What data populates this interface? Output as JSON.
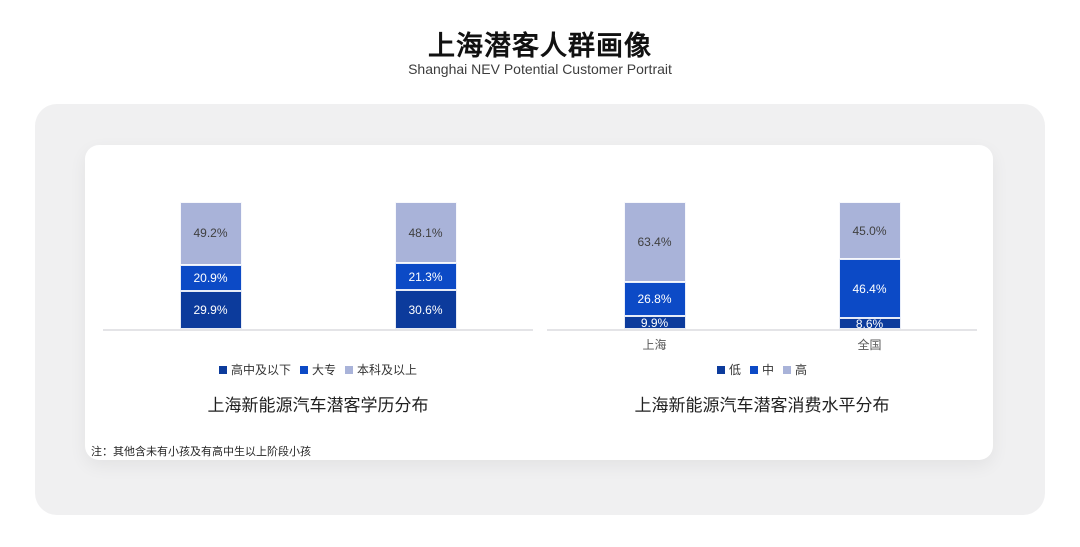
{
  "page": {
    "title": "上海潜客人群画像",
    "subtitle": "Shanghai NEV Potential Customer Portrait",
    "note": "注：其他含未有小孩及有高中生以上阶段小孩"
  },
  "colors": {
    "panel_bg": "#f0f0f1",
    "card_bg": "#ffffff",
    "axis_line": "#e4e4e7",
    "dark_blue": "#0c3b9c",
    "bright_blue": "#0c4ac6",
    "light_lavender": "#a9b3d9",
    "label_on_light": "#404040",
    "label_on_dark": "#ffffff"
  },
  "chart_data": [
    {
      "type": "bar",
      "stacked": true,
      "title": "上海新能源汽车潜客学历分布",
      "categories": [
        "",
        ""
      ],
      "series": [
        {
          "name": "高中及以下",
          "values": [
            29.9,
            30.6
          ],
          "color": "#0c3b9c",
          "label_color": "#ffffff"
        },
        {
          "name": "大专",
          "values": [
            20.9,
            21.3
          ],
          "color": "#0c4ac6",
          "label_color": "#ffffff"
        },
        {
          "name": "本科及以上",
          "values": [
            49.2,
            48.1
          ],
          "color": "#a9b3d9",
          "label_color": "#404040"
        }
      ],
      "legend": [
        "高中及以下",
        "大专",
        "本科及以上"
      ],
      "legend_position": "bottom",
      "xlabel": "",
      "ylabel": "",
      "ylim": [
        0,
        100
      ],
      "grid": false,
      "value_suffix": "%"
    },
    {
      "type": "bar",
      "stacked": true,
      "title": "上海新能源汽车潜客消费水平分布",
      "categories": [
        "上海",
        "全国"
      ],
      "series": [
        {
          "name": "低",
          "values": [
            9.9,
            8.6
          ],
          "color": "#0c3b9c",
          "label_color": "#ffffff"
        },
        {
          "name": "中",
          "values": [
            26.8,
            46.4
          ],
          "color": "#0c4ac6",
          "label_color": "#ffffff"
        },
        {
          "name": "高",
          "values": [
            63.4,
            45.0
          ],
          "color": "#a9b3d9",
          "label_color": "#404040"
        }
      ],
      "legend": [
        "低",
        "中",
        "高"
      ],
      "legend_position": "bottom",
      "xlabel": "",
      "ylabel": "",
      "ylim": [
        0,
        100
      ],
      "grid": false,
      "value_suffix": "%"
    }
  ]
}
